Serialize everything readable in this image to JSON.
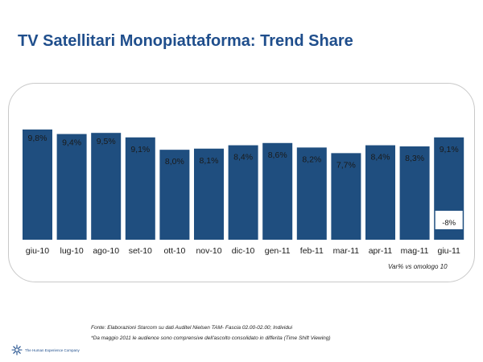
{
  "slide": {
    "title": "TV Satellitari Monopiattaforma: Trend Share",
    "note": "Var% vs omologo 10",
    "source": "Fonte: Elaborazioni Starcom su dati Auditel Nielsen TAM- Fascia 02.00-02.00; Individui",
    "footnote": "*Da maggio 2011 le audience sono comprensive dell'ascolto consolidato in differita (Time Shift Viewing)",
    "logo_text": "The Human Experience Company"
  },
  "colors": {
    "bar": "#1f4e7f",
    "title": "#1f4e8c"
  },
  "icons": {
    "logo": "star-burst-logo-icon"
  },
  "chart_data": {
    "type": "bar",
    "title": "",
    "xlabel": "",
    "ylabel": "",
    "categories": [
      "giu-10",
      "lug-10",
      "ago-10",
      "set-10",
      "ott-10",
      "nov-10",
      "dic-10",
      "gen-11",
      "feb-11",
      "mar-11",
      "apr-11",
      "mag-11",
      "giu-11"
    ],
    "values": [
      9.8,
      9.4,
      9.5,
      9.1,
      8.0,
      8.1,
      8.4,
      8.6,
      8.2,
      7.7,
      8.4,
      8.3,
      9.1
    ],
    "value_labels": [
      "9,8%",
      "9,4%",
      "9,5%",
      "9,1%",
      "8,0%",
      "8,1%",
      "8,4%",
      "8,6%",
      "8,2%",
      "7,7%",
      "8,4%",
      "8,3%",
      "9,1%"
    ],
    "ylim": [
      0,
      9.8
    ],
    "grid": false,
    "legend": "none",
    "annotation": {
      "category": "giu-11",
      "label": "-8%",
      "text": "Var% vs omologo 10"
    }
  }
}
